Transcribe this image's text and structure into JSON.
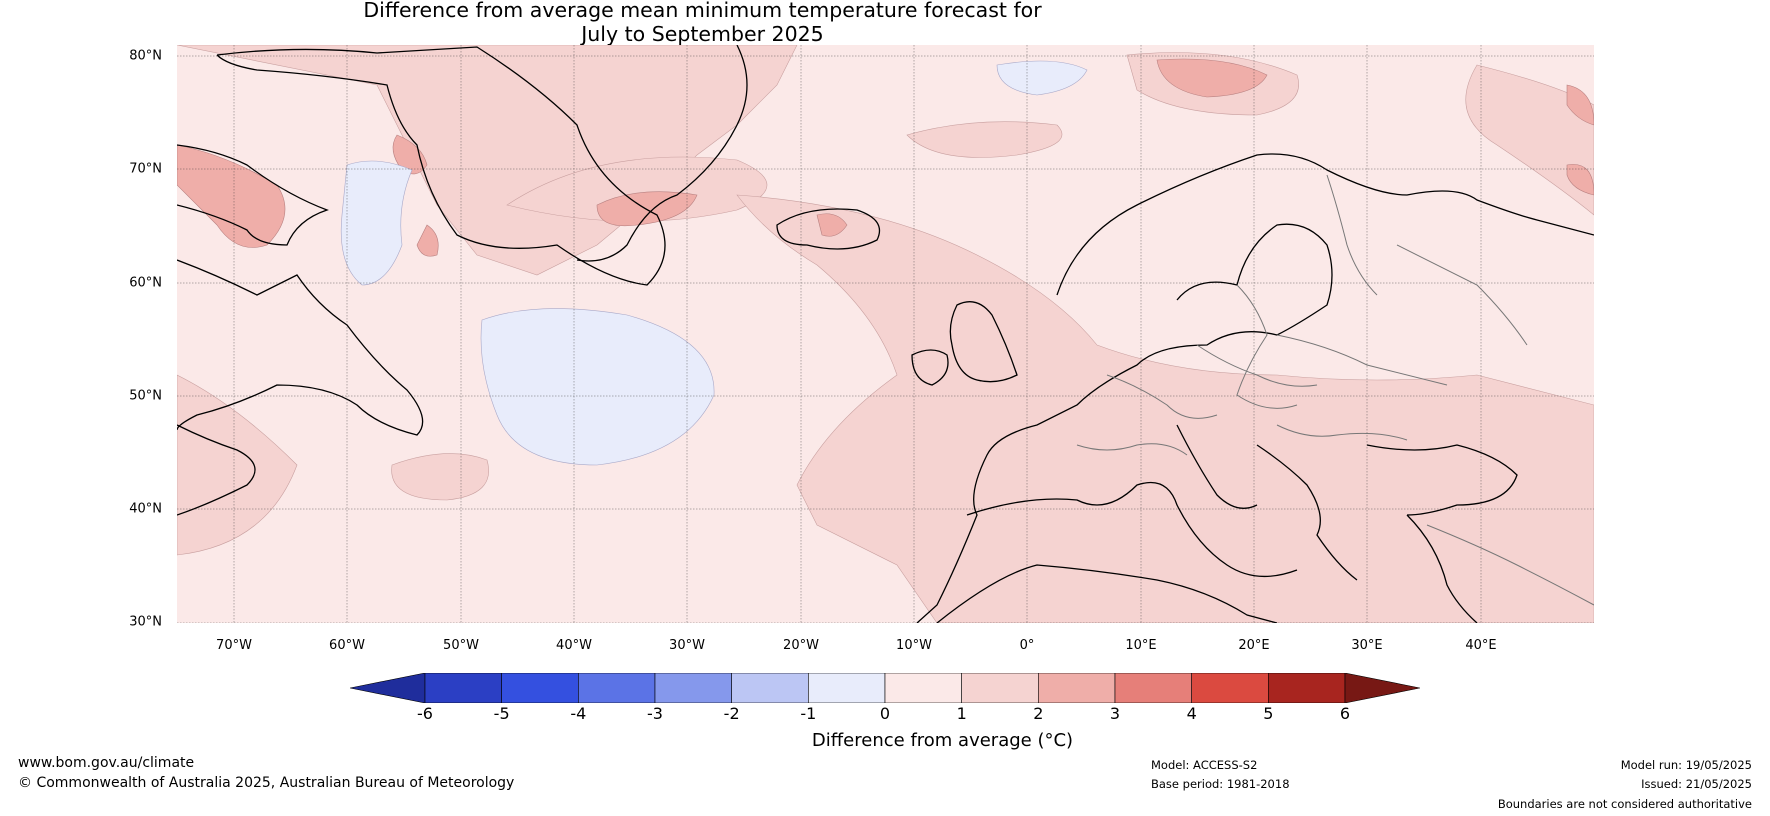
{
  "title_line1": "Difference from average mean minimum temperature forecast for",
  "title_line2": "July to September 2025",
  "lat_labels": [
    "80°N",
    "70°N",
    "60°N",
    "50°N",
    "40°N",
    "30°N"
  ],
  "lon_labels": [
    "70°W",
    "60°W",
    "50°W",
    "40°W",
    "30°W",
    "20°W",
    "10°W",
    "0°",
    "10°E",
    "20°E",
    "30°E",
    "40°E"
  ],
  "colorbar": {
    "ticks": [
      "-6",
      "-5",
      "-4",
      "-3",
      "-2",
      "-1",
      "0",
      "1",
      "2",
      "3",
      "4",
      "5",
      "6"
    ],
    "colors": [
      "#1f2d9c",
      "#2b3fc4",
      "#3450e0",
      "#5b73e6",
      "#8598ec",
      "#bcc6f4",
      "#e8ecfb",
      "#fbe9e8",
      "#f5d3d1",
      "#efaea9",
      "#e67f79",
      "#db4a40",
      "#a8251f",
      "#771814"
    ],
    "label": "Difference from average (°C)"
  },
  "footer": {
    "website": "www.bom.gov.au/climate",
    "copyright": "© Commonwealth of Australia 2025, Australian Bureau of Meteorology",
    "model": "Model: ACCESS-S2",
    "base_period": "Base period: 1981-2018",
    "model_run": "Model run: 19/05/2025",
    "issued": "Issued: 21/05/2025",
    "boundaries": "Boundaries are not considered authoritative"
  }
}
